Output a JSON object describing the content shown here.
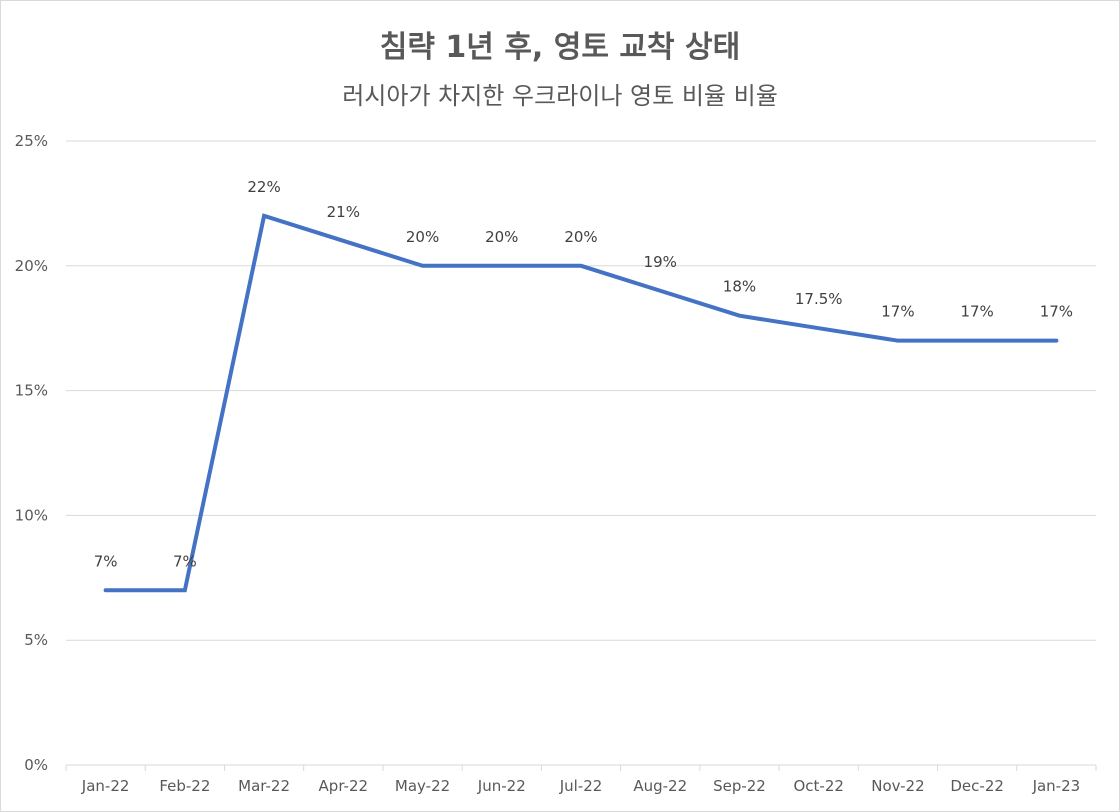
{
  "chart_data": {
    "type": "line",
    "title": "침략 1년 후, 영토 교착 상태",
    "subtitle": "러시아가 차지한 우크라이나 영토 비율 비율",
    "categories": [
      "Jan-22",
      "Feb-22",
      "Mar-22",
      "Apr-22",
      "May-22",
      "Jun-22",
      "Jul-22",
      "Aug-22",
      "Sep-22",
      "Oct-22",
      "Nov-22",
      "Dec-22",
      "Jan-23"
    ],
    "series": [
      {
        "values": [
          7,
          7,
          22,
          21,
          20,
          20,
          20,
          19,
          18,
          17.5,
          17,
          17,
          17
        ],
        "data_labels": [
          "7%",
          "7%",
          "22%",
          "21%",
          "20%",
          "20%",
          "20%",
          "19%",
          "18%",
          "17.5%",
          "17%",
          "17%",
          "17%"
        ]
      }
    ],
    "y_ticks": [
      "0%",
      "5%",
      "10%",
      "15%",
      "20%",
      "25%"
    ],
    "ylim": [
      0,
      25
    ],
    "grid": true,
    "line_color": "#4472C4"
  }
}
